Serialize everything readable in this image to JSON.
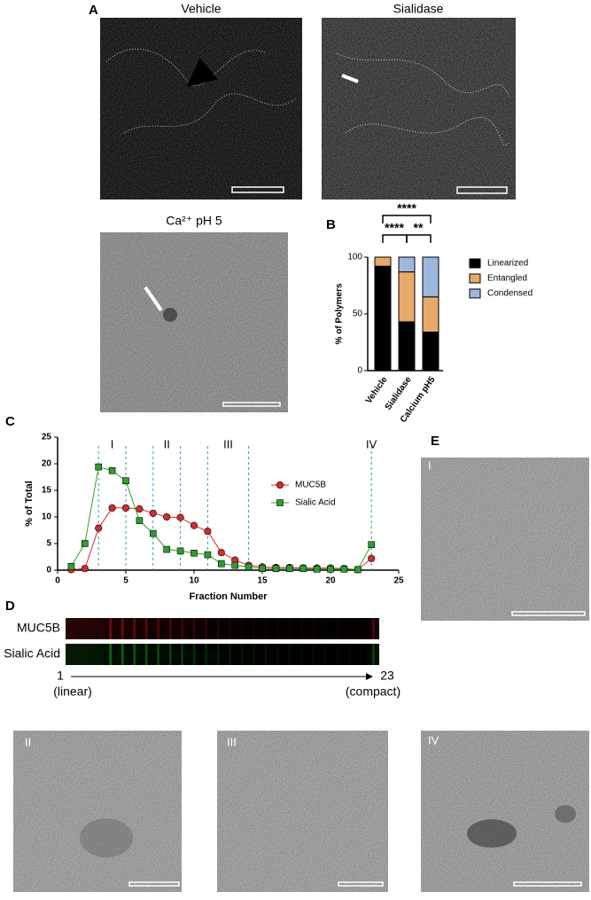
{
  "panels": {
    "A": {
      "label": "A",
      "images": [
        "Vehicle",
        "Sialidase",
        "Ca²⁺ pH 5"
      ]
    },
    "B": {
      "label": "B"
    },
    "C": {
      "label": "C"
    },
    "D": {
      "label": "D",
      "lanes": [
        "MUC5B",
        "Sialic Acid"
      ],
      "start": "1",
      "start_note": "(linear)",
      "end": "23",
      "end_note": "(compact)"
    },
    "E": {
      "label": "E",
      "images": [
        "I",
        "II",
        "III",
        "IV"
      ]
    }
  },
  "chart_data": [
    {
      "type": "bar",
      "stacked": true,
      "categories": [
        "Vehicle",
        "Sialidase",
        "Calcium pH5"
      ],
      "series": [
        {
          "name": "Linearized",
          "color": "#000000",
          "values": [
            92,
            43,
            34
          ]
        },
        {
          "name": "Entangled",
          "color": "#e8a96a",
          "values": [
            8,
            44,
            31
          ]
        },
        {
          "name": "Condensed",
          "color": "#9cb8de",
          "values": [
            0,
            13,
            35
          ]
        }
      ],
      "ylabel": "% of Polymers",
      "ylim": [
        0,
        100
      ],
      "yticks": [
        0,
        50,
        100
      ],
      "annotations": [
        "****",
        "****",
        "**"
      ],
      "legend": "right"
    },
    {
      "type": "line",
      "xlabel": "Fraction Number",
      "ylabel": "% of Total",
      "x": [
        1,
        2,
        3,
        4,
        5,
        6,
        7,
        8,
        9,
        10,
        11,
        12,
        13,
        14,
        15,
        16,
        17,
        18,
        19,
        20,
        21,
        22,
        23
      ],
      "series": [
        {
          "name": "MUC5B",
          "color": "#d62b2b",
          "marker": "circle",
          "values": [
            0.1,
            0.3,
            7.9,
            11.7,
            11.7,
            11.5,
            10.7,
            10,
            9.9,
            8.4,
            7.3,
            3.3,
            1.9,
            0.9,
            0.6,
            0.5,
            0.5,
            0.4,
            0.4,
            0.4,
            0.3,
            0.1,
            2.2
          ]
        },
        {
          "name": "Sialic Acid",
          "color": "#2ca02c",
          "marker": "square",
          "values": [
            0.7,
            5,
            19.4,
            18.7,
            16.8,
            9.3,
            6.9,
            3.9,
            3.6,
            3.2,
            2.9,
            1.2,
            0.9,
            0.6,
            0.3,
            0.3,
            0.3,
            0.3,
            0.2,
            0.2,
            0.2,
            0.1,
            4.8
          ]
        }
      ],
      "xlim": [
        0,
        25
      ],
      "xticks": [
        0,
        5,
        10,
        15,
        20,
        25
      ],
      "ylim": [
        0,
        25
      ],
      "yticks": [
        0,
        5,
        10,
        15,
        20,
        25
      ],
      "reference_lines": [
        3,
        5,
        7,
        9,
        11,
        14,
        23
      ],
      "regions": [
        {
          "label": "I",
          "x": 4
        },
        {
          "label": "II",
          "x": 8
        },
        {
          "label": "III",
          "x": 12.5
        },
        {
          "label": "IV",
          "x": 23
        }
      ],
      "legend": "upper right"
    }
  ]
}
